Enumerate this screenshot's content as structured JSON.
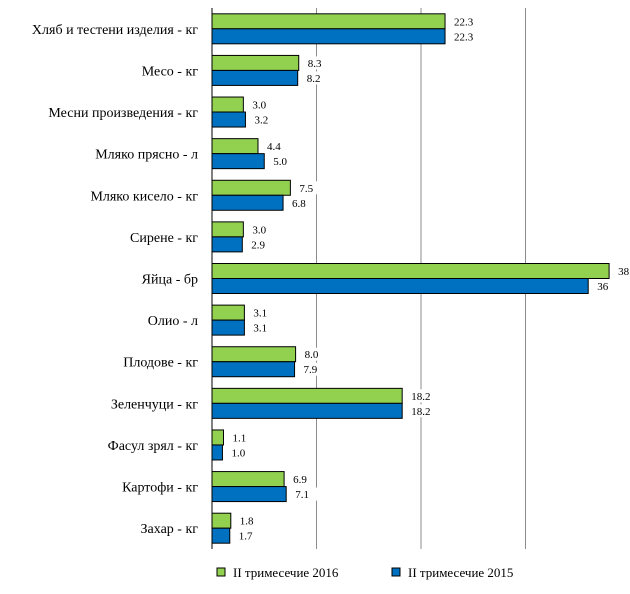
{
  "chart_data": {
    "type": "bar",
    "orientation": "horizontal",
    "categories": [
      "Хляб и тестени изделия - кг",
      "Месо - кг",
      "Месни произведения  - кг",
      "Мляко прясно - л",
      "Мляко кисело - кг",
      "Сирене - кг",
      "Яйца - бр",
      "Олио - л",
      "Плодове - кг",
      "Зеленчуци - кг",
      "Фасул зрял - кг",
      "Картофи - кг",
      "Захар - кг"
    ],
    "series": [
      {
        "name": "II тримесечие 2016",
        "color": "#92d050",
        "values": [
          22.3,
          8.3,
          3.0,
          4.4,
          7.5,
          3.0,
          38,
          3.1,
          8.0,
          18.2,
          1.1,
          6.9,
          1.8
        ],
        "labels": [
          "22.3",
          "8.3",
          "3.0",
          "4.4",
          "7.5",
          "3.0",
          "38",
          "3.1",
          "8.0",
          "18.2",
          "1.1",
          "6.9",
          "1.8"
        ]
      },
      {
        "name": "II тримесечие 2015",
        "color": "#0070c0",
        "values": [
          22.3,
          8.2,
          3.2,
          5.0,
          6.8,
          2.9,
          36,
          3.1,
          7.9,
          18.2,
          1.0,
          7.1,
          1.7
        ],
        "labels": [
          "22.3",
          "8.2",
          "3.2",
          "5.0",
          "6.8",
          "2.9",
          "36",
          "3.1",
          "7.9",
          "18.2",
          "1.0",
          "7.1",
          "1.7"
        ]
      }
    ],
    "xlim": [
      0,
      40
    ],
    "gridlines": [
      10,
      20,
      30
    ],
    "grid": true,
    "legend_position": "bottom",
    "xlabel": "",
    "ylabel": ""
  }
}
